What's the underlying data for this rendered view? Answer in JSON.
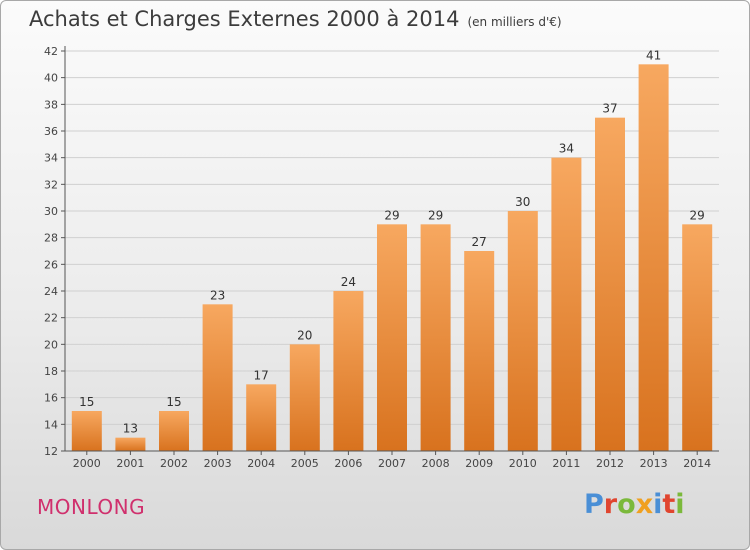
{
  "title": "Achats et Charges Externes 2000 à 2014",
  "unit": "(en milliers d'€)",
  "city": "MONLONG",
  "logo": {
    "letters": [
      {
        "ch": "P",
        "color": "#4a8fd6"
      },
      {
        "ch": "r",
        "color": "#e0452f"
      },
      {
        "ch": "o",
        "color": "#7bb93b"
      },
      {
        "ch": "x",
        "color": "#f0a020"
      },
      {
        "ch": "i",
        "color": "#4a8fd6"
      },
      {
        "ch": "t",
        "color": "#e0452f"
      },
      {
        "ch": "i",
        "color": "#7bb93b"
      }
    ]
  },
  "colors": {
    "bar_top": "#f7a860",
    "bar_bottom": "#d8721e",
    "axis": "#555555",
    "grid": "#d0d0d0"
  },
  "chart_data": {
    "type": "bar",
    "categories": [
      "2000",
      "2001",
      "2002",
      "2003",
      "2004",
      "2005",
      "2006",
      "2007",
      "2008",
      "2009",
      "2010",
      "2011",
      "2012",
      "2013",
      "2014"
    ],
    "values": [
      15,
      13,
      15,
      23,
      17,
      20,
      24,
      29,
      29,
      27,
      30,
      34,
      37,
      41,
      29
    ],
    "ylim": [
      12,
      42
    ],
    "yticks": [
      12,
      14,
      16,
      18,
      20,
      22,
      24,
      26,
      28,
      30,
      32,
      34,
      36,
      38,
      40,
      42
    ],
    "grid": true,
    "data_labels": true
  }
}
